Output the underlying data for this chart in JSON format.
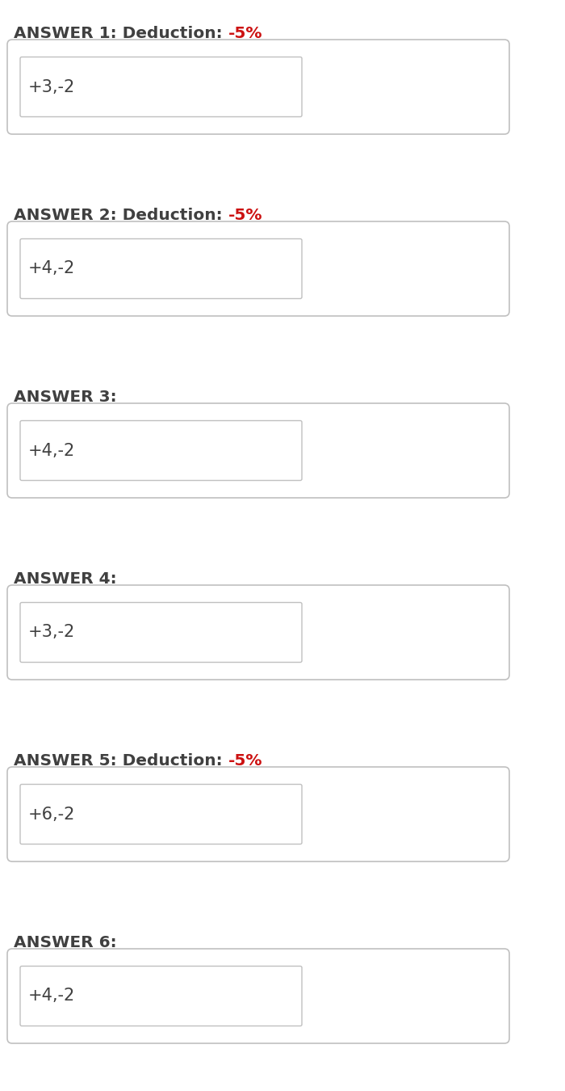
{
  "answers": [
    {
      "number": 1,
      "deduction": true,
      "deduction_text": "-5%",
      "value": "+3,-2"
    },
    {
      "number": 2,
      "deduction": true,
      "deduction_text": "-5%",
      "value": "+4,-2"
    },
    {
      "number": 3,
      "deduction": false,
      "deduction_text": "",
      "value": "+4,-2"
    },
    {
      "number": 4,
      "deduction": false,
      "deduction_text": "",
      "value": "+3,-2"
    },
    {
      "number": 5,
      "deduction": true,
      "deduction_text": "-5%",
      "value": "+6,-2"
    },
    {
      "number": 6,
      "deduction": false,
      "deduction_text": "",
      "value": "+4,-2"
    }
  ],
  "bg_color": "#ffffff",
  "label_color": "#404040",
  "deduction_color": "#cc1111",
  "label_fontsize": 14.5,
  "value_fontsize": 15,
  "outer_box_edge": "#c0c0c0",
  "inner_box_edge": "#c0c0c0"
}
